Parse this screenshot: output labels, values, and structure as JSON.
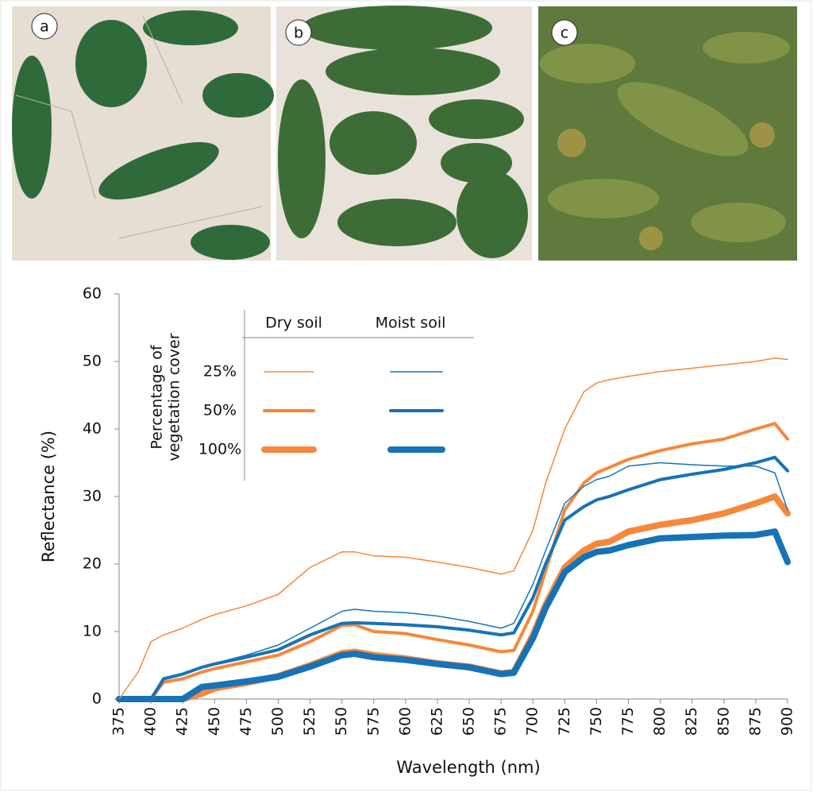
{
  "photos": [
    {
      "label": "a"
    },
    {
      "label": "b"
    },
    {
      "label": "c"
    }
  ],
  "chart_data": {
    "type": "line",
    "xlabel": "Wavelength (nm)",
    "ylabel": "Reflectance (%)",
    "x": [
      375,
      390,
      400,
      410,
      425,
      440,
      450,
      475,
      500,
      525,
      550,
      560,
      575,
      600,
      625,
      650,
      675,
      685,
      700,
      710,
      725,
      740,
      750,
      760,
      775,
      800,
      825,
      850,
      875,
      890,
      900
    ],
    "xlim": [
      375,
      900
    ],
    "xticks": [
      375,
      400,
      425,
      450,
      475,
      500,
      525,
      550,
      575,
      600,
      625,
      650,
      675,
      700,
      725,
      750,
      775,
      800,
      825,
      850,
      875,
      900
    ],
    "ylim": [
      0,
      60
    ],
    "yticks": [
      0,
      10,
      20,
      30,
      40,
      50,
      60
    ],
    "line_widths": [
      1.5,
      4,
      8
    ],
    "legend": {
      "title": [
        "Percentage of",
        "vegetation cover"
      ],
      "rows": [
        "25%",
        "50%",
        "100%"
      ]
    },
    "series_groups": [
      {
        "name": "Dry soil",
        "color": "#f7873a",
        "series": [
          {
            "values": [
              0,
              4,
              8.5,
              9.5,
              10.5,
              11.8,
              12.5,
              13.8,
              15.5,
              19.5,
              21.8,
              21.8,
              21.2,
              21,
              20.3,
              19.5,
              18.5,
              19,
              25,
              32,
              40,
              45.5,
              46.8,
              47.3,
              47.8,
              48.5,
              49,
              49.5,
              50,
              50.5,
              50.3
            ]
          },
          {
            "values": [
              0,
              0,
              0,
              2.5,
              3,
              4,
              4.5,
              5.5,
              6.5,
              8.5,
              10.9,
              11,
              10,
              9.7,
              8.8,
              8,
              7,
              7.2,
              13,
              19,
              28,
              32,
              33.5,
              34.3,
              35.5,
              36.8,
              37.8,
              38.5,
              40,
              40.8,
              38.5
            ]
          },
          {
            "values": [
              0,
              0,
              0,
              0,
              0,
              0.8,
              1.6,
              2.4,
              3.4,
              5,
              6.8,
              7,
              6.5,
              6,
              5.3,
              4.8,
              3.8,
              4,
              9.5,
              14,
              19.5,
              22,
              23,
              23.3,
              24.8,
              25.8,
              26.5,
              27.5,
              29,
              30,
              27.5
            ]
          }
        ]
      },
      {
        "name": "Moist soil",
        "color": "#1673b8",
        "series": [
          {
            "values": [
              0,
              0,
              0,
              3,
              3.8,
              4.8,
              5.3,
              6.5,
              8,
              10.5,
              13,
              13.3,
              13,
              12.8,
              12.3,
              11.5,
              10.5,
              11.2,
              17,
              22,
              29,
              31.5,
              32.5,
              33,
              34.5,
              35,
              34.7,
              34.5,
              34.5,
              33.5,
              28
            ]
          },
          {
            "values": [
              0,
              0,
              0,
              3,
              3.7,
              4.7,
              5.2,
              6.2,
              7.3,
              9.5,
              11.2,
              11.3,
              11.2,
              11,
              10.7,
              10.2,
              9.5,
              9.8,
              15,
              20,
              26.5,
              28.5,
              29.5,
              30,
              31,
              32.5,
              33.3,
              34,
              35,
              35.8,
              33.8
            ]
          },
          {
            "values": [
              0,
              0,
              0,
              0,
              0,
              1.8,
              2,
              2.6,
              3.3,
              4.8,
              6.5,
              6.7,
              6.2,
              5.8,
              5.2,
              4.7,
              3.7,
              3.9,
              9,
              13.5,
              18.8,
              21,
              21.8,
              22,
              22.8,
              23.8,
              24,
              24.2,
              24.3,
              24.8,
              20.3
            ]
          }
        ]
      }
    ]
  }
}
